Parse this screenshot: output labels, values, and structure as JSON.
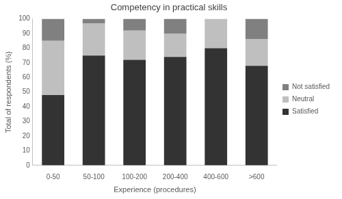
{
  "chart_data": {
    "type": "bar",
    "stacked": true,
    "title": "Competency in practical skills",
    "x_label": "Experience (procedures)",
    "y_label": "Total of respondents (%)",
    "categories": [
      "0-50",
      "50-100",
      "100-200",
      "200-400",
      "400-600",
      ">600"
    ],
    "series": [
      {
        "name": "Satisfied",
        "color": "#333333",
        "values": [
          48,
          75,
          72,
          74,
          80,
          68
        ]
      },
      {
        "name": "Neutral",
        "color": "#bfbfbf",
        "values": [
          37,
          22,
          20,
          16,
          20,
          18
        ]
      },
      {
        "name": "Not satisfied",
        "color": "#808080",
        "values": [
          15,
          3,
          8,
          10,
          0,
          14
        ]
      }
    ],
    "ylim": [
      0,
      100
    ],
    "yticks": [
      0,
      10,
      20,
      30,
      40,
      50,
      60,
      70,
      80,
      90,
      100
    ],
    "grid": false,
    "legend": "right"
  }
}
